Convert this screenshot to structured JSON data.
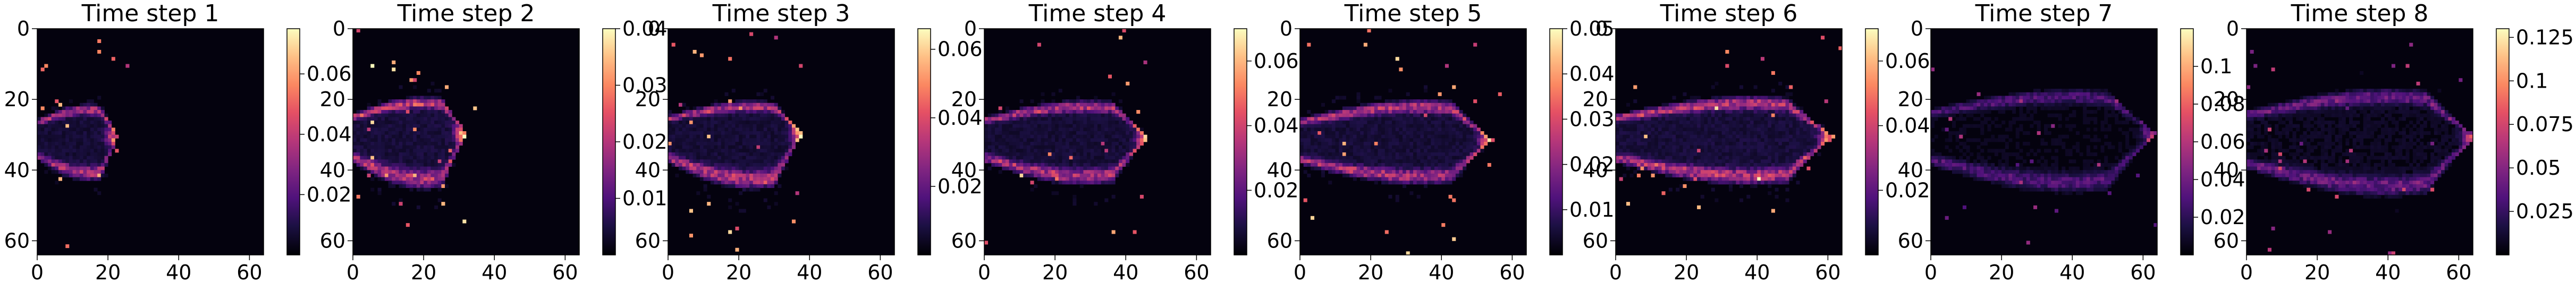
{
  "chart_data": [
    {
      "type": "heatmap",
      "title": "Time step 1",
      "x_ticks": [
        0,
        20,
        40,
        60
      ],
      "y_ticks": [
        0,
        20,
        40,
        60
      ],
      "xlim": [
        0,
        64
      ],
      "ylim": [
        64,
        0
      ],
      "colorbar": {
        "min": 0,
        "max": 0.075,
        "ticks": [
          0.02,
          0.04,
          0.06
        ],
        "cmap": "magma"
      },
      "plume": {
        "x_end": 22,
        "y_center": 30,
        "y_top": 22,
        "y_bottom": 41,
        "peak": 0.07
      }
    },
    {
      "type": "heatmap",
      "title": "Time step 2",
      "x_ticks": [
        0,
        20,
        40,
        60
      ],
      "y_ticks": [
        0,
        20,
        40,
        60
      ],
      "xlim": [
        0,
        64
      ],
      "ylim": [
        64,
        0
      ],
      "colorbar": {
        "min": 0,
        "max": 0.04,
        "ticks": [
          0.01,
          0.02,
          0.03,
          0.04
        ],
        "cmap": "magma"
      },
      "plume": {
        "x_end": 31,
        "y_center": 29,
        "y_top": 20,
        "y_bottom": 43,
        "peak": 0.04
      }
    },
    {
      "type": "heatmap",
      "title": "Time step 3",
      "x_ticks": [
        0,
        20,
        40,
        60
      ],
      "y_ticks": [
        0,
        20,
        40,
        60
      ],
      "xlim": [
        0,
        64
      ],
      "ylim": [
        64,
        0
      ],
      "colorbar": {
        "min": 0,
        "max": 0.066,
        "ticks": [
          0.02,
          0.04,
          0.06
        ],
        "cmap": "magma"
      },
      "plume": {
        "x_end": 37,
        "y_center": 29,
        "y_top": 21,
        "y_bottom": 43,
        "peak": 0.062
      }
    },
    {
      "type": "heatmap",
      "title": "Time step 4",
      "x_ticks": [
        0,
        20,
        40,
        60
      ],
      "y_ticks": [
        0,
        20,
        40,
        60
      ],
      "xlim": [
        0,
        64
      ],
      "ylim": [
        64,
        0
      ],
      "colorbar": {
        "min": 0,
        "max": 0.07,
        "ticks": [
          0.02,
          0.04,
          0.06
        ],
        "cmap": "magma"
      },
      "plume": {
        "x_end": 45,
        "y_center": 30,
        "y_top": 21,
        "y_bottom": 42,
        "peak": 0.065
      }
    },
    {
      "type": "heatmap",
      "title": "Time step 5",
      "x_ticks": [
        0,
        20,
        40,
        60
      ],
      "y_ticks": [
        0,
        20,
        40,
        60
      ],
      "xlim": [
        0,
        64
      ],
      "ylim": [
        64,
        0
      ],
      "colorbar": {
        "min": 0,
        "max": 0.05,
        "ticks": [
          0.01,
          0.02,
          0.03,
          0.04,
          0.05
        ],
        "cmap": "magma"
      },
      "plume": {
        "x_end": 53,
        "y_center": 31,
        "y_top": 21,
        "y_bottom": 42,
        "peak": 0.048
      }
    },
    {
      "type": "heatmap",
      "title": "Time step 6",
      "x_ticks": [
        0,
        20,
        40,
        60
      ],
      "y_ticks": [
        0,
        20,
        40,
        60
      ],
      "xlim": [
        0,
        64
      ],
      "ylim": [
        64,
        0
      ],
      "colorbar": {
        "min": 0,
        "max": 0.07,
        "ticks": [
          0.02,
          0.04,
          0.06
        ],
        "cmap": "magma"
      },
      "plume": {
        "x_end": 60,
        "y_center": 30,
        "y_top": 20,
        "y_bottom": 42,
        "peak": 0.07
      }
    },
    {
      "type": "heatmap",
      "title": "Time step 7",
      "x_ticks": [
        0,
        20,
        40,
        60
      ],
      "y_ticks": [
        0,
        20,
        40,
        60
      ],
      "xlim": [
        0,
        64
      ],
      "ylim": [
        64,
        0
      ],
      "colorbar": {
        "min": 0,
        "max": 0.12,
        "ticks": [
          0.02,
          0.04,
          0.06,
          0.08,
          0.1
        ],
        "cmap": "magma"
      },
      "plume": {
        "x_end": 62,
        "y_center": 29,
        "y_top": 18,
        "y_bottom": 44,
        "peak": 0.06
      }
    },
    {
      "type": "heatmap",
      "title": "Time step 8",
      "x_ticks": [
        0,
        20,
        40,
        60
      ],
      "y_ticks": [
        0,
        20,
        40,
        60
      ],
      "xlim": [
        0,
        64
      ],
      "ylim": [
        64,
        0
      ],
      "colorbar": {
        "min": 0,
        "max": 0.13,
        "ticks": [
          0.025,
          0.05,
          0.075,
          0.1,
          0.125
        ],
        "cmap": "magma"
      },
      "plume": {
        "x_end": 63,
        "y_center": 30,
        "y_top": 18,
        "y_bottom": 45,
        "peak": 0.08
      }
    }
  ]
}
